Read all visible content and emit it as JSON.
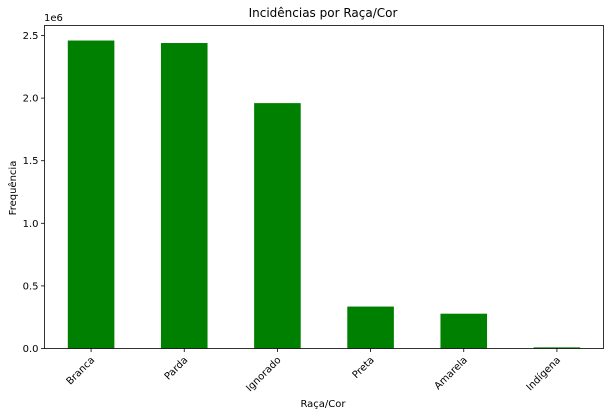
{
  "chart_data": {
    "type": "bar",
    "title": "Incidências por Raça/Cor",
    "xlabel": "Raça/Cor",
    "ylabel": "Frequência",
    "y_multiplier_label": "1e6",
    "categories": [
      "Branca",
      "Parda",
      "Ignorado",
      "Preta",
      "Amarela",
      "Indígena"
    ],
    "values": [
      2460000,
      2440000,
      1960000,
      335000,
      278000,
      9000
    ],
    "ylim": [
      0,
      2580000
    ],
    "yticks": [
      0,
      500000,
      1000000,
      1500000,
      2000000,
      2500000
    ],
    "ytick_labels": [
      "0.0",
      "0.5",
      "1.0",
      "1.5",
      "2.0",
      "2.5"
    ],
    "bar_color": "#008000",
    "grid": false,
    "legend": "none"
  }
}
